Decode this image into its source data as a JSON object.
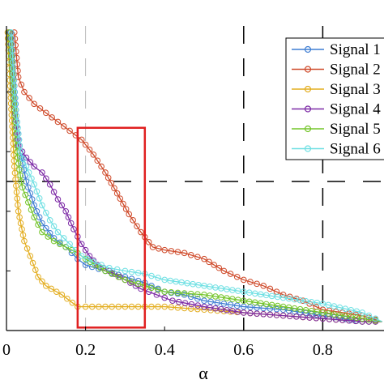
{
  "chart_data": {
    "type": "line",
    "xlabel": "α",
    "ylabel": "",
    "title": "",
    "xlim": [
      0,
      0.95
    ],
    "ylim": [
      0,
      1
    ],
    "xticks": [
      "0",
      "0.2",
      "0.4",
      "0.6",
      "0.8"
    ],
    "xtick_values": [
      0,
      0.2,
      0.4,
      0.6,
      0.8
    ],
    "legend_position": "top-right",
    "grid": "dashed lines at x = 0.2, 0.6, 0.8 and y = 0.5",
    "highlight_box": {
      "color": "#e02020",
      "x_range": [
        0.18,
        0.35
      ],
      "y_range": [
        0.01,
        0.68
      ]
    },
    "series": [
      {
        "name": "Signal 1",
        "color": "#3f7ed3",
        "points": [
          [
            0.005,
            1.0
          ],
          [
            0.015,
            0.92
          ],
          [
            0.025,
            0.72
          ],
          [
            0.035,
            0.6
          ],
          [
            0.05,
            0.5
          ],
          [
            0.07,
            0.42
          ],
          [
            0.09,
            0.36
          ],
          [
            0.12,
            0.31
          ],
          [
            0.15,
            0.28
          ],
          [
            0.18,
            0.24
          ],
          [
            0.2,
            0.22
          ],
          [
            0.25,
            0.2
          ],
          [
            0.3,
            0.18
          ],
          [
            0.35,
            0.16
          ],
          [
            0.4,
            0.13
          ],
          [
            0.45,
            0.12
          ],
          [
            0.5,
            0.1
          ],
          [
            0.55,
            0.09
          ],
          [
            0.6,
            0.08
          ],
          [
            0.7,
            0.07
          ],
          [
            0.8,
            0.05
          ],
          [
            0.9,
            0.03
          ],
          [
            0.95,
            0.03
          ]
        ]
      },
      {
        "name": "Signal 2",
        "color": "#cf4a2a",
        "points": [
          [
            0.02,
            1.0
          ],
          [
            0.03,
            0.85
          ],
          [
            0.045,
            0.8
          ],
          [
            0.07,
            0.76
          ],
          [
            0.1,
            0.73
          ],
          [
            0.13,
            0.7
          ],
          [
            0.16,
            0.67
          ],
          [
            0.19,
            0.64
          ],
          [
            0.22,
            0.59
          ],
          [
            0.25,
            0.53
          ],
          [
            0.28,
            0.46
          ],
          [
            0.31,
            0.39
          ],
          [
            0.34,
            0.33
          ],
          [
            0.37,
            0.28
          ],
          [
            0.4,
            0.27
          ],
          [
            0.45,
            0.26
          ],
          [
            0.5,
            0.24
          ],
          [
            0.55,
            0.2
          ],
          [
            0.6,
            0.17
          ],
          [
            0.65,
            0.15
          ],
          [
            0.7,
            0.12
          ],
          [
            0.75,
            0.1
          ],
          [
            0.8,
            0.07
          ],
          [
            0.85,
            0.06
          ],
          [
            0.9,
            0.05
          ],
          [
            0.95,
            0.03
          ]
        ]
      },
      {
        "name": "Signal 3",
        "color": "#e3ad1f",
        "points": [
          [
            0.003,
            1.0
          ],
          [
            0.01,
            0.8
          ],
          [
            0.02,
            0.55
          ],
          [
            0.03,
            0.4
          ],
          [
            0.045,
            0.3
          ],
          [
            0.06,
            0.25
          ],
          [
            0.08,
            0.18
          ],
          [
            0.1,
            0.15
          ],
          [
            0.14,
            0.12
          ],
          [
            0.18,
            0.08
          ],
          [
            0.2,
            0.08
          ],
          [
            0.25,
            0.08
          ],
          [
            0.3,
            0.08
          ],
          [
            0.35,
            0.08
          ],
          [
            0.4,
            0.08
          ],
          [
            0.5,
            0.07
          ],
          [
            0.6,
            0.06
          ],
          [
            0.7,
            0.05
          ],
          [
            0.8,
            0.04
          ],
          [
            0.9,
            0.03
          ],
          [
            0.95,
            0.03
          ]
        ]
      },
      {
        "name": "Signal 4",
        "color": "#7d2aa6",
        "points": [
          [
            0.01,
            1.0
          ],
          [
            0.02,
            0.75
          ],
          [
            0.03,
            0.62
          ],
          [
            0.05,
            0.58
          ],
          [
            0.07,
            0.55
          ],
          [
            0.09,
            0.53
          ],
          [
            0.11,
            0.49
          ],
          [
            0.13,
            0.44
          ],
          [
            0.15,
            0.4
          ],
          [
            0.17,
            0.34
          ],
          [
            0.19,
            0.29
          ],
          [
            0.21,
            0.25
          ],
          [
            0.23,
            0.22
          ],
          [
            0.26,
            0.2
          ],
          [
            0.3,
            0.17
          ],
          [
            0.34,
            0.14
          ],
          [
            0.38,
            0.12
          ],
          [
            0.42,
            0.1
          ],
          [
            0.5,
            0.08
          ],
          [
            0.6,
            0.06
          ],
          [
            0.7,
            0.05
          ],
          [
            0.8,
            0.04
          ],
          [
            0.9,
            0.03
          ],
          [
            0.95,
            0.03
          ]
        ]
      },
      {
        "name": "Signal 5",
        "color": "#74c52a",
        "points": [
          [
            0.008,
            1.0
          ],
          [
            0.018,
            0.78
          ],
          [
            0.028,
            0.58
          ],
          [
            0.04,
            0.48
          ],
          [
            0.055,
            0.43
          ],
          [
            0.07,
            0.38
          ],
          [
            0.09,
            0.33
          ],
          [
            0.12,
            0.3
          ],
          [
            0.15,
            0.28
          ],
          [
            0.18,
            0.26
          ],
          [
            0.2,
            0.24
          ],
          [
            0.25,
            0.2
          ],
          [
            0.3,
            0.17
          ],
          [
            0.35,
            0.15
          ],
          [
            0.4,
            0.13
          ],
          [
            0.5,
            0.12
          ],
          [
            0.6,
            0.1
          ],
          [
            0.7,
            0.08
          ],
          [
            0.8,
            0.06
          ],
          [
            0.9,
            0.04
          ],
          [
            0.95,
            0.03
          ]
        ]
      },
      {
        "name": "Signal 6",
        "color": "#6fe0e3",
        "points": [
          [
            0.012,
            1.0
          ],
          [
            0.022,
            0.76
          ],
          [
            0.035,
            0.6
          ],
          [
            0.05,
            0.55
          ],
          [
            0.07,
            0.49
          ],
          [
            0.09,
            0.42
          ],
          [
            0.11,
            0.37
          ],
          [
            0.13,
            0.33
          ],
          [
            0.16,
            0.29
          ],
          [
            0.19,
            0.25
          ],
          [
            0.22,
            0.23
          ],
          [
            0.26,
            0.21
          ],
          [
            0.3,
            0.2
          ],
          [
            0.35,
            0.19
          ],
          [
            0.4,
            0.17
          ],
          [
            0.5,
            0.15
          ],
          [
            0.6,
            0.13
          ],
          [
            0.7,
            0.11
          ],
          [
            0.8,
            0.09
          ],
          [
            0.9,
            0.06
          ],
          [
            0.95,
            0.03
          ]
        ]
      }
    ]
  }
}
